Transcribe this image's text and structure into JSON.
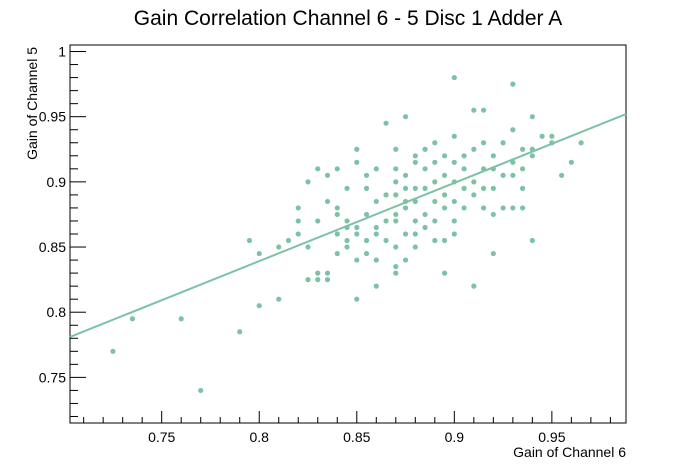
{
  "chart_data": {
    "type": "scatter",
    "title": "Gain Correlation  Channel 6 - 5 Disc 1 Adder A",
    "xlabel": "Gain of Channel 6",
    "ylabel": "Gain of Channel 5",
    "xlim": [
      0.703,
      0.988
    ],
    "ylim": [
      0.715,
      1.005
    ],
    "x_ticks": [
      0.75,
      0.8,
      0.85,
      0.9,
      0.95
    ],
    "y_ticks": [
      0.75,
      0.8,
      0.85,
      0.9,
      0.95,
      1
    ],
    "x_tick_labels": [
      "0.75",
      "0.8",
      "0.85",
      "0.9",
      "0.95"
    ],
    "y_tick_labels": [
      "0.75",
      "0.8",
      "0.85",
      "0.9",
      "0.95",
      "1"
    ],
    "grid": false,
    "marker_color": "#7dc2a5",
    "fit_line": {
      "x": [
        0.703,
        0.988
      ],
      "y": [
        0.781,
        0.952
      ]
    },
    "points": [
      [
        0.725,
        0.77
      ],
      [
        0.735,
        0.795
      ],
      [
        0.76,
        0.795
      ],
      [
        0.77,
        0.74
      ],
      [
        0.79,
        0.785
      ],
      [
        0.795,
        0.855
      ],
      [
        0.8,
        0.845
      ],
      [
        0.8,
        0.805
      ],
      [
        0.81,
        0.85
      ],
      [
        0.81,
        0.81
      ],
      [
        0.815,
        0.855
      ],
      [
        0.82,
        0.86
      ],
      [
        0.82,
        0.87
      ],
      [
        0.82,
        0.88
      ],
      [
        0.825,
        0.825
      ],
      [
        0.825,
        0.85
      ],
      [
        0.825,
        0.9
      ],
      [
        0.83,
        0.83
      ],
      [
        0.83,
        0.825
      ],
      [
        0.83,
        0.87
      ],
      [
        0.83,
        0.91
      ],
      [
        0.835,
        0.825
      ],
      [
        0.835,
        0.83
      ],
      [
        0.835,
        0.885
      ],
      [
        0.835,
        0.905
      ],
      [
        0.84,
        0.845
      ],
      [
        0.84,
        0.86
      ],
      [
        0.84,
        0.875
      ],
      [
        0.84,
        0.88
      ],
      [
        0.84,
        0.91
      ],
      [
        0.845,
        0.85
      ],
      [
        0.845,
        0.855
      ],
      [
        0.845,
        0.865
      ],
      [
        0.845,
        0.87
      ],
      [
        0.845,
        0.895
      ],
      [
        0.85,
        0.81
      ],
      [
        0.85,
        0.84
      ],
      [
        0.85,
        0.86
      ],
      [
        0.85,
        0.865
      ],
      [
        0.85,
        0.915
      ],
      [
        0.85,
        0.925
      ],
      [
        0.855,
        0.845
      ],
      [
        0.855,
        0.855
      ],
      [
        0.855,
        0.875
      ],
      [
        0.855,
        0.895
      ],
      [
        0.855,
        0.905
      ],
      [
        0.86,
        0.82
      ],
      [
        0.86,
        0.84
      ],
      [
        0.86,
        0.86
      ],
      [
        0.86,
        0.865
      ],
      [
        0.86,
        0.885
      ],
      [
        0.86,
        0.91
      ],
      [
        0.865,
        0.855
      ],
      [
        0.865,
        0.87
      ],
      [
        0.865,
        0.89
      ],
      [
        0.865,
        0.945
      ],
      [
        0.87,
        0.83
      ],
      [
        0.87,
        0.835
      ],
      [
        0.87,
        0.85
      ],
      [
        0.87,
        0.87
      ],
      [
        0.87,
        0.875
      ],
      [
        0.87,
        0.89
      ],
      [
        0.87,
        0.9
      ],
      [
        0.87,
        0.91
      ],
      [
        0.87,
        0.925
      ],
      [
        0.875,
        0.84
      ],
      [
        0.875,
        0.86
      ],
      [
        0.875,
        0.88
      ],
      [
        0.875,
        0.885
      ],
      [
        0.875,
        0.895
      ],
      [
        0.875,
        0.905
      ],
      [
        0.875,
        0.95
      ],
      [
        0.88,
        0.85
      ],
      [
        0.88,
        0.86
      ],
      [
        0.88,
        0.87
      ],
      [
        0.88,
        0.885
      ],
      [
        0.88,
        0.895
      ],
      [
        0.88,
        0.915
      ],
      [
        0.88,
        0.92
      ],
      [
        0.885,
        0.865
      ],
      [
        0.885,
        0.875
      ],
      [
        0.885,
        0.895
      ],
      [
        0.885,
        0.91
      ],
      [
        0.885,
        0.925
      ],
      [
        0.89,
        0.855
      ],
      [
        0.89,
        0.87
      ],
      [
        0.89,
        0.885
      ],
      [
        0.89,
        0.9
      ],
      [
        0.89,
        0.915
      ],
      [
        0.89,
        0.93
      ],
      [
        0.895,
        0.83
      ],
      [
        0.895,
        0.855
      ],
      [
        0.895,
        0.88
      ],
      [
        0.895,
        0.89
      ],
      [
        0.895,
        0.905
      ],
      [
        0.895,
        0.92
      ],
      [
        0.9,
        0.86
      ],
      [
        0.9,
        0.87
      ],
      [
        0.9,
        0.885
      ],
      [
        0.9,
        0.9
      ],
      [
        0.9,
        0.915
      ],
      [
        0.9,
        0.935
      ],
      [
        0.9,
        0.98
      ],
      [
        0.905,
        0.88
      ],
      [
        0.905,
        0.895
      ],
      [
        0.905,
        0.91
      ],
      [
        0.905,
        0.92
      ],
      [
        0.91,
        0.82
      ],
      [
        0.91,
        0.89
      ],
      [
        0.91,
        0.9
      ],
      [
        0.91,
        0.925
      ],
      [
        0.91,
        0.955
      ],
      [
        0.915,
        0.88
      ],
      [
        0.915,
        0.895
      ],
      [
        0.915,
        0.91
      ],
      [
        0.915,
        0.93
      ],
      [
        0.915,
        0.955
      ],
      [
        0.92,
        0.845
      ],
      [
        0.92,
        0.875
      ],
      [
        0.92,
        0.895
      ],
      [
        0.92,
        0.91
      ],
      [
        0.92,
        0.92
      ],
      [
        0.925,
        0.88
      ],
      [
        0.925,
        0.905
      ],
      [
        0.925,
        0.93
      ],
      [
        0.93,
        0.88
      ],
      [
        0.93,
        0.905
      ],
      [
        0.93,
        0.915
      ],
      [
        0.93,
        0.94
      ],
      [
        0.93,
        0.975
      ],
      [
        0.935,
        0.88
      ],
      [
        0.935,
        0.895
      ],
      [
        0.935,
        0.91
      ],
      [
        0.935,
        0.925
      ],
      [
        0.94,
        0.855
      ],
      [
        0.94,
        0.92
      ],
      [
        0.94,
        0.925
      ],
      [
        0.94,
        0.95
      ],
      [
        0.945,
        0.935
      ],
      [
        0.95,
        0.93
      ],
      [
        0.95,
        0.935
      ],
      [
        0.955,
        0.905
      ],
      [
        0.96,
        0.915
      ],
      [
        0.965,
        0.93
      ]
    ]
  }
}
